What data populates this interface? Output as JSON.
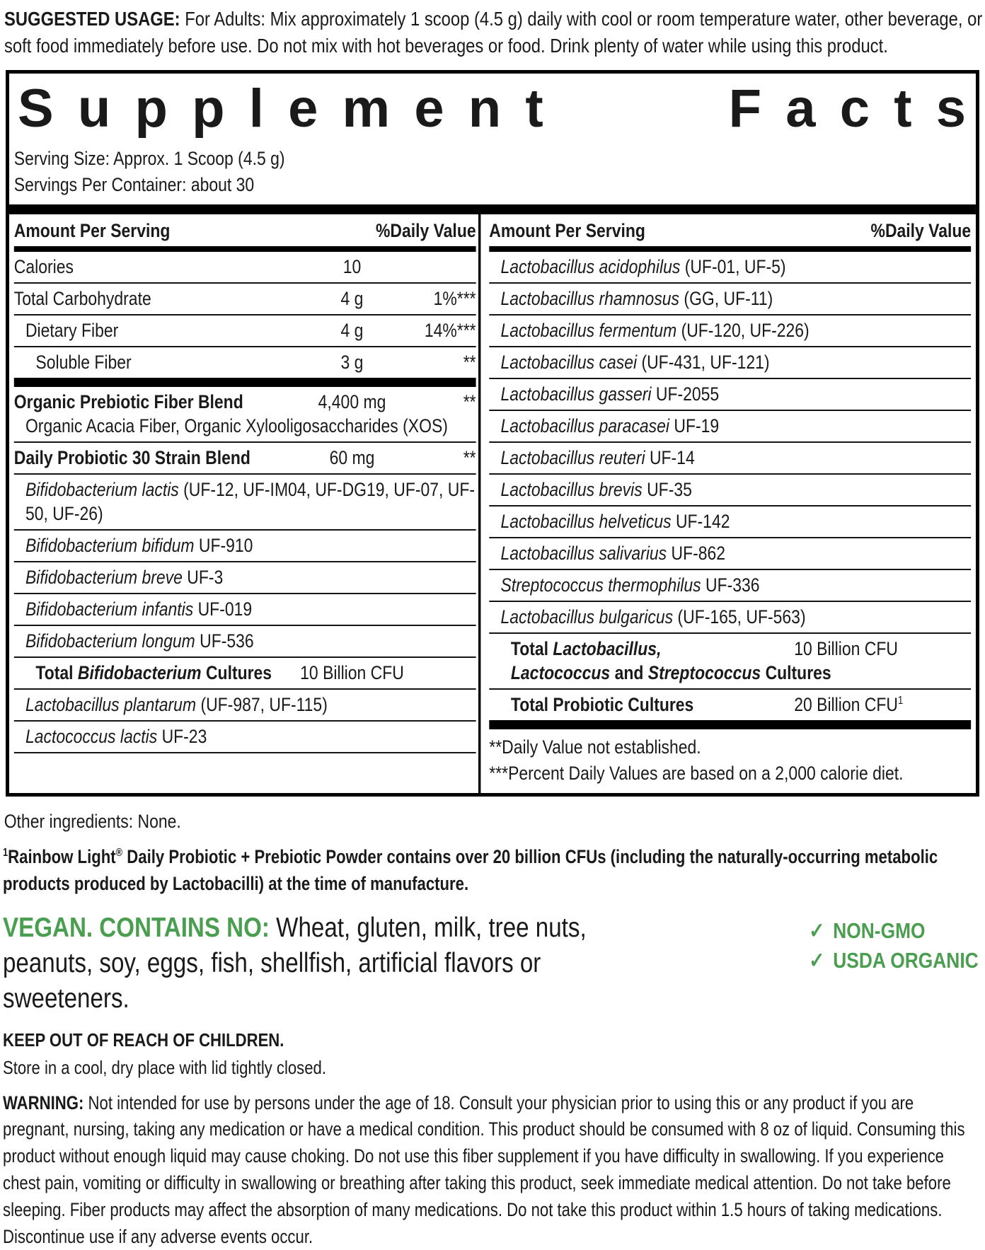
{
  "colors": {
    "green": "#4a9e4f",
    "text": "#1a1a1a"
  },
  "icons": {
    "check": "✓"
  },
  "suggested_usage": {
    "label": "SUGGESTED USAGE:",
    "text": " For Adults: Mix approximately 1 scoop (4.5 g) daily with cool or room temperature water, other beverage, or soft food immediately before use. Do not mix with hot beverages or food. Drink plenty of water while using this product."
  },
  "panel": {
    "title_words": [
      "Supplement",
      "Facts"
    ],
    "serving_size": "Serving Size: Approx. 1 Scoop (4.5 g)",
    "servings_per_container": "Servings Per Container: about 30",
    "column_header": {
      "amount": "Amount Per Serving",
      "daily_value": "%Daily Value"
    },
    "left_rows": [
      {
        "name": [
          {
            "t": "Calories"
          }
        ],
        "amount": "10",
        "dv": "",
        "indent": 0
      },
      {
        "name": [
          {
            "t": "Total Carbohydrate"
          }
        ],
        "amount": "4 g",
        "dv": "1%***",
        "indent": 0
      },
      {
        "name": [
          {
            "t": "Dietary Fiber"
          }
        ],
        "amount": "4 g",
        "dv": "14%***",
        "indent": 1
      },
      {
        "name": [
          {
            "t": "Soluble Fiber"
          }
        ],
        "amount": "3 g",
        "dv": "**",
        "indent": 2,
        "thick_after": true
      },
      {
        "name": [
          {
            "t": "Organic Prebiotic Fiber Blend",
            "b": 1
          }
        ],
        "amount": "4,400 mg",
        "dv": "**",
        "indent": 0,
        "sub": "Organic Acacia Fiber, Organic Xylooligosaccharides (XOS)"
      },
      {
        "name": [
          {
            "t": "Daily Probiotic 30 Strain Blend",
            "b": 1
          }
        ],
        "amount": "60 mg",
        "dv": "**",
        "indent": 0
      },
      {
        "name": [
          {
            "t": "Bifidobacterium lactis",
            "i": 1
          },
          {
            "t": " (UF-12, UF-IM04, UF-DG19, UF-07, UF-50, UF-26)"
          }
        ],
        "indent": 1
      },
      {
        "name": [
          {
            "t": "Bifidobacterium bifidum",
            "i": 1
          },
          {
            "t": " UF-910"
          }
        ],
        "indent": 1
      },
      {
        "name": [
          {
            "t": "Bifidobacterium breve",
            "i": 1
          },
          {
            "t": " UF-3"
          }
        ],
        "indent": 1
      },
      {
        "name": [
          {
            "t": "Bifidobacterium infantis",
            "i": 1
          },
          {
            "t": " UF-019"
          }
        ],
        "indent": 1
      },
      {
        "name": [
          {
            "t": "Bifidobacterium longum",
            "i": 1
          },
          {
            "t": " UF-536"
          }
        ],
        "indent": 1
      },
      {
        "name": [
          {
            "t": "Total ",
            "b": 1
          },
          {
            "t": "Bifidobacterium",
            "b": 1,
            "i": 1
          },
          {
            "t": " Cultures",
            "b": 1
          }
        ],
        "amount": "10 Billion CFU",
        "dv": "",
        "indent": 2
      },
      {
        "name": [
          {
            "t": "Lactobacillus plantarum",
            "i": 1
          },
          {
            "t": " (UF-987, UF-115)"
          }
        ],
        "indent": 1
      },
      {
        "name": [
          {
            "t": "Lactococcus lactis",
            "i": 1
          },
          {
            "t": " UF-23"
          }
        ],
        "indent": 1
      }
    ],
    "right_rows": [
      {
        "name": [
          {
            "t": "Lactobacillus acidophilus",
            "i": 1
          },
          {
            "t": " (UF-01, UF-5)"
          }
        ],
        "indent": 1
      },
      {
        "name": [
          {
            "t": "Lactobacillus rhamnosus",
            "i": 1
          },
          {
            "t": " (GG, UF-11)"
          }
        ],
        "indent": 1
      },
      {
        "name": [
          {
            "t": "Lactobacillus fermentum",
            "i": 1
          },
          {
            "t": " (UF-120, UF-226)"
          }
        ],
        "indent": 1
      },
      {
        "name": [
          {
            "t": "Lactobacillus casei",
            "i": 1
          },
          {
            "t": " (UF-431, UF-121)"
          }
        ],
        "indent": 1
      },
      {
        "name": [
          {
            "t": "Lactobacillus gasseri",
            "i": 1
          },
          {
            "t": " UF-2055"
          }
        ],
        "indent": 1
      },
      {
        "name": [
          {
            "t": "Lactobacillus paracasei",
            "i": 1
          },
          {
            "t": " UF-19"
          }
        ],
        "indent": 1
      },
      {
        "name": [
          {
            "t": "Lactobacillus reuteri",
            "i": 1
          },
          {
            "t": " UF-14"
          }
        ],
        "indent": 1
      },
      {
        "name": [
          {
            "t": "Lactobacillus brevis",
            "i": 1
          },
          {
            "t": " UF-35"
          }
        ],
        "indent": 1
      },
      {
        "name": [
          {
            "t": "Lactobacillus helveticus",
            "i": 1
          },
          {
            "t": " UF-142"
          }
        ],
        "indent": 1
      },
      {
        "name": [
          {
            "t": "Lactobacillus salivarius",
            "i": 1
          },
          {
            "t": " UF-862"
          }
        ],
        "indent": 1
      },
      {
        "name": [
          {
            "t": "Streptococcus thermophilus",
            "i": 1
          },
          {
            "t": " UF-336"
          }
        ],
        "indent": 1
      },
      {
        "name": [
          {
            "t": "Lactobacillus bulgaricus",
            "i": 1
          },
          {
            "t": " (UF-165, UF-563)"
          }
        ],
        "indent": 1
      },
      {
        "name": [
          {
            "t": "Total ",
            "b": 1
          },
          {
            "t": "Lactobacillus,",
            "b": 1,
            "i": 1
          }
        ],
        "name2": [
          {
            "t": "Lactococcus",
            "b": 1,
            "i": 1
          },
          {
            "t": " and ",
            "b": 1
          },
          {
            "t": "Streptococcus",
            "b": 1,
            "i": 1
          },
          {
            "t": " Cultures",
            "b": 1
          }
        ],
        "amount": "10 Billion CFU",
        "indent": 2
      },
      {
        "name": [
          {
            "t": "Total Probiotic Cultures",
            "b": 1
          }
        ],
        "amount": "20 Billion CFU",
        "amount_sup": "1",
        "indent": 2,
        "thick_after": true
      }
    ],
    "footnotes": [
      "**Daily Value not established.",
      "***Percent Daily Values are based on a 2,000 calorie diet."
    ]
  },
  "other_ingredients": "Other ingredients: None.",
  "manufacture_footnote": {
    "sup": "1",
    "brand": "Rainbow Light",
    "reg_mark": "®",
    "rest": " Daily Probiotic + Prebiotic Powder contains over 20 billion CFUs (including the naturally-occurring metabolic products produced by Lactobacilli) at the time of manufacture."
  },
  "vegan": {
    "lead": "VEGAN. CONTAINS NO:",
    "text": " Wheat, gluten, milk, tree nuts, peanuts, soy, eggs, fish, shellfish, artificial flavors or sweeteners."
  },
  "badges": [
    {
      "label": "NON-GMO"
    },
    {
      "label": "USDA ORGANIC"
    }
  ],
  "keep_out": "KEEP OUT OF REACH OF CHILDREN.",
  "storage": "Store in a cool, dry place with lid tightly closed.",
  "warning": {
    "label": "WARNING:",
    "text": " Not intended for use by persons under the age of 18. Consult your physician prior to using this or any product if you are pregnant, nursing, taking any medication or have a medical condition. This product should be consumed with 8 oz of liquid. Consuming this product without enough liquid may cause choking. Do not use this fiber supplement if you have difficulty in swallowing. If you experience chest pain, vomiting or difficulty in swallowing or breathing after taking this product, seek immediate medical attention. Do not take before sleeping. Fiber products may affect the absorption of many medications. Do not take this product within 1.5 hours of taking medications. Discontinue use if any adverse events occur."
  }
}
